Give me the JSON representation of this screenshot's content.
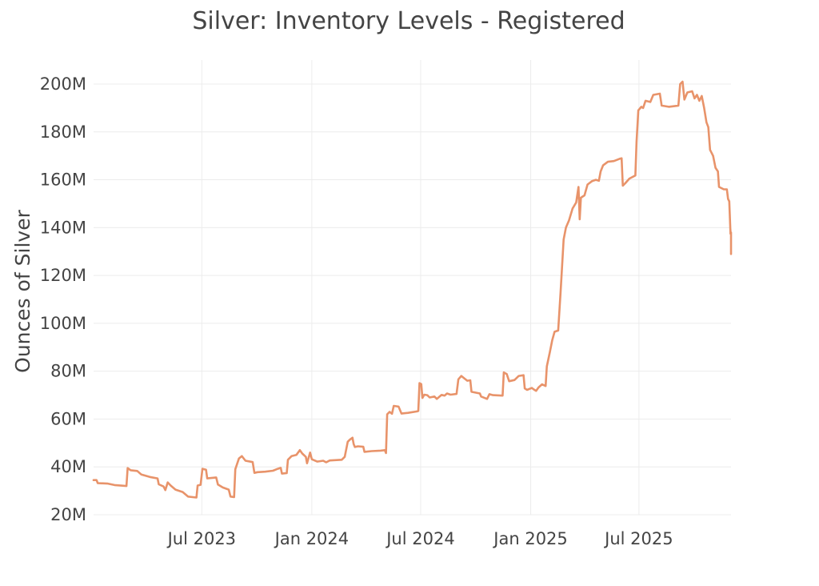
{
  "chart_data": {
    "type": "line",
    "title": "Silver: Inventory Levels - Registered",
    "xlabel": "",
    "ylabel": "Ounces of Silver",
    "ylim": [
      20,
      200
    ],
    "y_unit": "M",
    "y_ticks": [
      {
        "value": 20,
        "label": "20M"
      },
      {
        "value": 40,
        "label": "40M"
      },
      {
        "value": 60,
        "label": "60M"
      },
      {
        "value": 80,
        "label": "80M"
      },
      {
        "value": 100,
        "label": "100M"
      },
      {
        "value": 120,
        "label": "120M"
      },
      {
        "value": 140,
        "label": "140M"
      },
      {
        "value": 160,
        "label": "160M"
      },
      {
        "value": 180,
        "label": "180M"
      },
      {
        "value": 200,
        "label": "200M"
      }
    ],
    "xlim": [
      "2023-01-01",
      "2025-12-02"
    ],
    "x_ticks": [
      {
        "value": "2023-07-01",
        "label": "Jul 2023"
      },
      {
        "value": "2024-01-01",
        "label": "Jan 2024"
      },
      {
        "value": "2024-07-01",
        "label": "Jul 2024"
      },
      {
        "value": "2025-01-01",
        "label": "Jan 2025"
      },
      {
        "value": "2025-07-01",
        "label": "Jul 2025"
      }
    ],
    "grid": true,
    "color": "#e8936a",
    "series": [
      {
        "points": [
          [
            "2023-01-01",
            34.5
          ],
          [
            "2023-01-06",
            34.5
          ],
          [
            "2023-01-08",
            33.2
          ],
          [
            "2023-01-25",
            33.0
          ],
          [
            "2023-02-05",
            32.4
          ],
          [
            "2023-02-25",
            32.0
          ],
          [
            "2023-02-27",
            39.5
          ],
          [
            "2023-03-04",
            38.6
          ],
          [
            "2023-03-15",
            38.3
          ],
          [
            "2023-03-22",
            36.8
          ],
          [
            "2023-04-05",
            35.8
          ],
          [
            "2023-04-18",
            35.2
          ],
          [
            "2023-04-20",
            32.7
          ],
          [
            "2023-04-28",
            31.8
          ],
          [
            "2023-05-01",
            30.3
          ],
          [
            "2023-05-05",
            33.5
          ],
          [
            "2023-05-10",
            32.2
          ],
          [
            "2023-05-18",
            30.5
          ],
          [
            "2023-05-30",
            29.5
          ],
          [
            "2023-06-08",
            27.6
          ],
          [
            "2023-06-22",
            27.2
          ],
          [
            "2023-06-24",
            32.2
          ],
          [
            "2023-06-29",
            32.5
          ],
          [
            "2023-07-02",
            39.2
          ],
          [
            "2023-07-08",
            38.8
          ],
          [
            "2023-07-10",
            35.2
          ],
          [
            "2023-07-25",
            35.6
          ],
          [
            "2023-07-28",
            32.6
          ],
          [
            "2023-08-05",
            31.4
          ],
          [
            "2023-08-15",
            30.5
          ],
          [
            "2023-08-18",
            27.6
          ],
          [
            "2023-08-24",
            27.4
          ],
          [
            "2023-08-26",
            39.0
          ],
          [
            "2023-09-01",
            43.5
          ],
          [
            "2023-09-06",
            44.5
          ],
          [
            "2023-09-12",
            42.6
          ],
          [
            "2023-09-24",
            42.0
          ],
          [
            "2023-09-27",
            37.5
          ],
          [
            "2023-10-02",
            37.8
          ],
          [
            "2023-10-15",
            38.0
          ],
          [
            "2023-10-28",
            38.4
          ],
          [
            "2023-11-05",
            39.2
          ],
          [
            "2023-11-10",
            39.6
          ],
          [
            "2023-11-12",
            37.2
          ],
          [
            "2023-11-20",
            37.4
          ],
          [
            "2023-11-22",
            43.0
          ],
          [
            "2023-11-28",
            44.5
          ],
          [
            "2023-12-06",
            45.0
          ],
          [
            "2023-12-12",
            47.0
          ],
          [
            "2023-12-16",
            45.6
          ],
          [
            "2023-12-22",
            44.2
          ],
          [
            "2023-12-24",
            41.5
          ],
          [
            "2023-12-29",
            46.0
          ],
          [
            "2024-01-01",
            43.2
          ],
          [
            "2024-01-10",
            42.2
          ],
          [
            "2024-01-20",
            42.6
          ],
          [
            "2024-01-25",
            41.9
          ],
          [
            "2024-01-31",
            42.7
          ],
          [
            "2024-02-20",
            43.0
          ],
          [
            "2024-02-25",
            44.2
          ],
          [
            "2024-03-01",
            50.5
          ],
          [
            "2024-03-05",
            51.5
          ],
          [
            "2024-03-09",
            52.2
          ],
          [
            "2024-03-11",
            49.5
          ],
          [
            "2024-03-13",
            48.3
          ],
          [
            "2024-03-18",
            48.6
          ],
          [
            "2024-03-27",
            48.4
          ],
          [
            "2024-03-29",
            46.3
          ],
          [
            "2024-04-10",
            46.6
          ],
          [
            "2024-04-25",
            46.8
          ],
          [
            "2024-05-02",
            47.0
          ],
          [
            "2024-05-04",
            45.8
          ],
          [
            "2024-05-06",
            62.0
          ],
          [
            "2024-05-10",
            63.0
          ],
          [
            "2024-05-14",
            62.2
          ],
          [
            "2024-05-17",
            65.5
          ],
          [
            "2024-05-25",
            65.2
          ],
          [
            "2024-05-30",
            62.3
          ],
          [
            "2024-06-10",
            62.6
          ],
          [
            "2024-06-25",
            63.2
          ],
          [
            "2024-06-27",
            63.4
          ],
          [
            "2024-06-29",
            75.0
          ],
          [
            "2024-07-02",
            74.6
          ],
          [
            "2024-07-04",
            68.8
          ],
          [
            "2024-07-07",
            70.2
          ],
          [
            "2024-07-12",
            70.0
          ],
          [
            "2024-07-16",
            69.0
          ],
          [
            "2024-07-24",
            69.4
          ],
          [
            "2024-07-28",
            68.4
          ],
          [
            "2024-08-05",
            70.1
          ],
          [
            "2024-08-10",
            69.8
          ],
          [
            "2024-08-14",
            70.7
          ],
          [
            "2024-08-20",
            70.2
          ],
          [
            "2024-08-30",
            70.5
          ],
          [
            "2024-09-02",
            76.6
          ],
          [
            "2024-09-07",
            78.0
          ],
          [
            "2024-09-12",
            77.0
          ],
          [
            "2024-09-17",
            76.0
          ],
          [
            "2024-09-22",
            76.2
          ],
          [
            "2024-09-24",
            71.4
          ],
          [
            "2024-09-28",
            71.2
          ],
          [
            "2024-10-08",
            70.7
          ],
          [
            "2024-10-10",
            69.4
          ],
          [
            "2024-10-20",
            68.4
          ],
          [
            "2024-10-24",
            70.4
          ],
          [
            "2024-10-30",
            70.0
          ],
          [
            "2024-11-15",
            69.8
          ],
          [
            "2024-11-17",
            79.5
          ],
          [
            "2024-11-22",
            78.8
          ],
          [
            "2024-11-26",
            75.8
          ],
          [
            "2024-12-05",
            76.3
          ],
          [
            "2024-12-12",
            78.0
          ],
          [
            "2024-12-20",
            78.3
          ],
          [
            "2024-12-22",
            72.8
          ],
          [
            "2024-12-26",
            72.2
          ],
          [
            "2025-01-03",
            73.0
          ],
          [
            "2025-01-06",
            72.4
          ],
          [
            "2025-01-10",
            71.8
          ],
          [
            "2025-01-14",
            73.2
          ],
          [
            "2025-01-20",
            74.5
          ],
          [
            "2025-01-26",
            73.8
          ],
          [
            "2025-01-28",
            82.0
          ],
          [
            "2025-02-02",
            88.0
          ],
          [
            "2025-02-06",
            93.0
          ],
          [
            "2025-02-10",
            96.5
          ],
          [
            "2025-02-16",
            97.0
          ],
          [
            "2025-02-20",
            113.0
          ],
          [
            "2025-02-25",
            135.0
          ],
          [
            "2025-03-01",
            140.0
          ],
          [
            "2025-03-06",
            143.0
          ],
          [
            "2025-03-12",
            148.0
          ],
          [
            "2025-03-18",
            150.5
          ],
          [
            "2025-03-22",
            157.0
          ],
          [
            "2025-03-24",
            143.5
          ],
          [
            "2025-03-26",
            152.5
          ],
          [
            "2025-04-01",
            153.5
          ],
          [
            "2025-04-06",
            158.0
          ],
          [
            "2025-04-14",
            159.5
          ],
          [
            "2025-04-20",
            160.0
          ],
          [
            "2025-04-25",
            159.6
          ],
          [
            "2025-04-28",
            163.5
          ],
          [
            "2025-05-02",
            166.0
          ],
          [
            "2025-05-10",
            167.5
          ],
          [
            "2025-05-20",
            167.8
          ],
          [
            "2025-05-30",
            168.8
          ],
          [
            "2025-06-02",
            169.0
          ],
          [
            "2025-06-04",
            157.5
          ],
          [
            "2025-06-08",
            158.5
          ],
          [
            "2025-06-15",
            160.5
          ],
          [
            "2025-06-25",
            161.8
          ],
          [
            "2025-06-27",
            176.0
          ],
          [
            "2025-06-30",
            189.0
          ],
          [
            "2025-07-05",
            190.5
          ],
          [
            "2025-07-08",
            190.0
          ],
          [
            "2025-07-12",
            193.0
          ],
          [
            "2025-07-20",
            192.5
          ],
          [
            "2025-07-25",
            195.5
          ],
          [
            "2025-08-05",
            196.0
          ],
          [
            "2025-08-08",
            191.0
          ],
          [
            "2025-08-20",
            190.5
          ],
          [
            "2025-09-05",
            191.0
          ],
          [
            "2025-09-08",
            200.0
          ],
          [
            "2025-09-12",
            201.0
          ],
          [
            "2025-09-15",
            193.5
          ],
          [
            "2025-09-20",
            196.5
          ],
          [
            "2025-09-28",
            197.0
          ],
          [
            "2025-10-02",
            194.0
          ],
          [
            "2025-10-06",
            195.5
          ],
          [
            "2025-10-10",
            193.0
          ],
          [
            "2025-10-14",
            195.0
          ],
          [
            "2025-10-18",
            190.0
          ],
          [
            "2025-10-22",
            184.0
          ],
          [
            "2025-10-25",
            182.0
          ],
          [
            "2025-10-28",
            172.5
          ],
          [
            "2025-11-02",
            170.0
          ],
          [
            "2025-11-06",
            165.0
          ],
          [
            "2025-11-10",
            163.5
          ],
          [
            "2025-11-12",
            157.0
          ],
          [
            "2025-11-20",
            156.0
          ],
          [
            "2025-11-25",
            156.0
          ],
          [
            "2025-11-27",
            152.0
          ],
          [
            "2025-11-29",
            151.0
          ],
          [
            "2025-11-30",
            145.0
          ],
          [
            "2025-12-01",
            138.0
          ],
          [
            "2025-12-01",
            139.0
          ],
          [
            "2025-12-01",
            137.5
          ],
          [
            "2025-12-02",
            138.0
          ],
          [
            "2025-12-02",
            135.5
          ],
          [
            "2025-12-02",
            131.0
          ],
          [
            "2025-12-02",
            129.0
          ]
        ]
      }
    ]
  }
}
